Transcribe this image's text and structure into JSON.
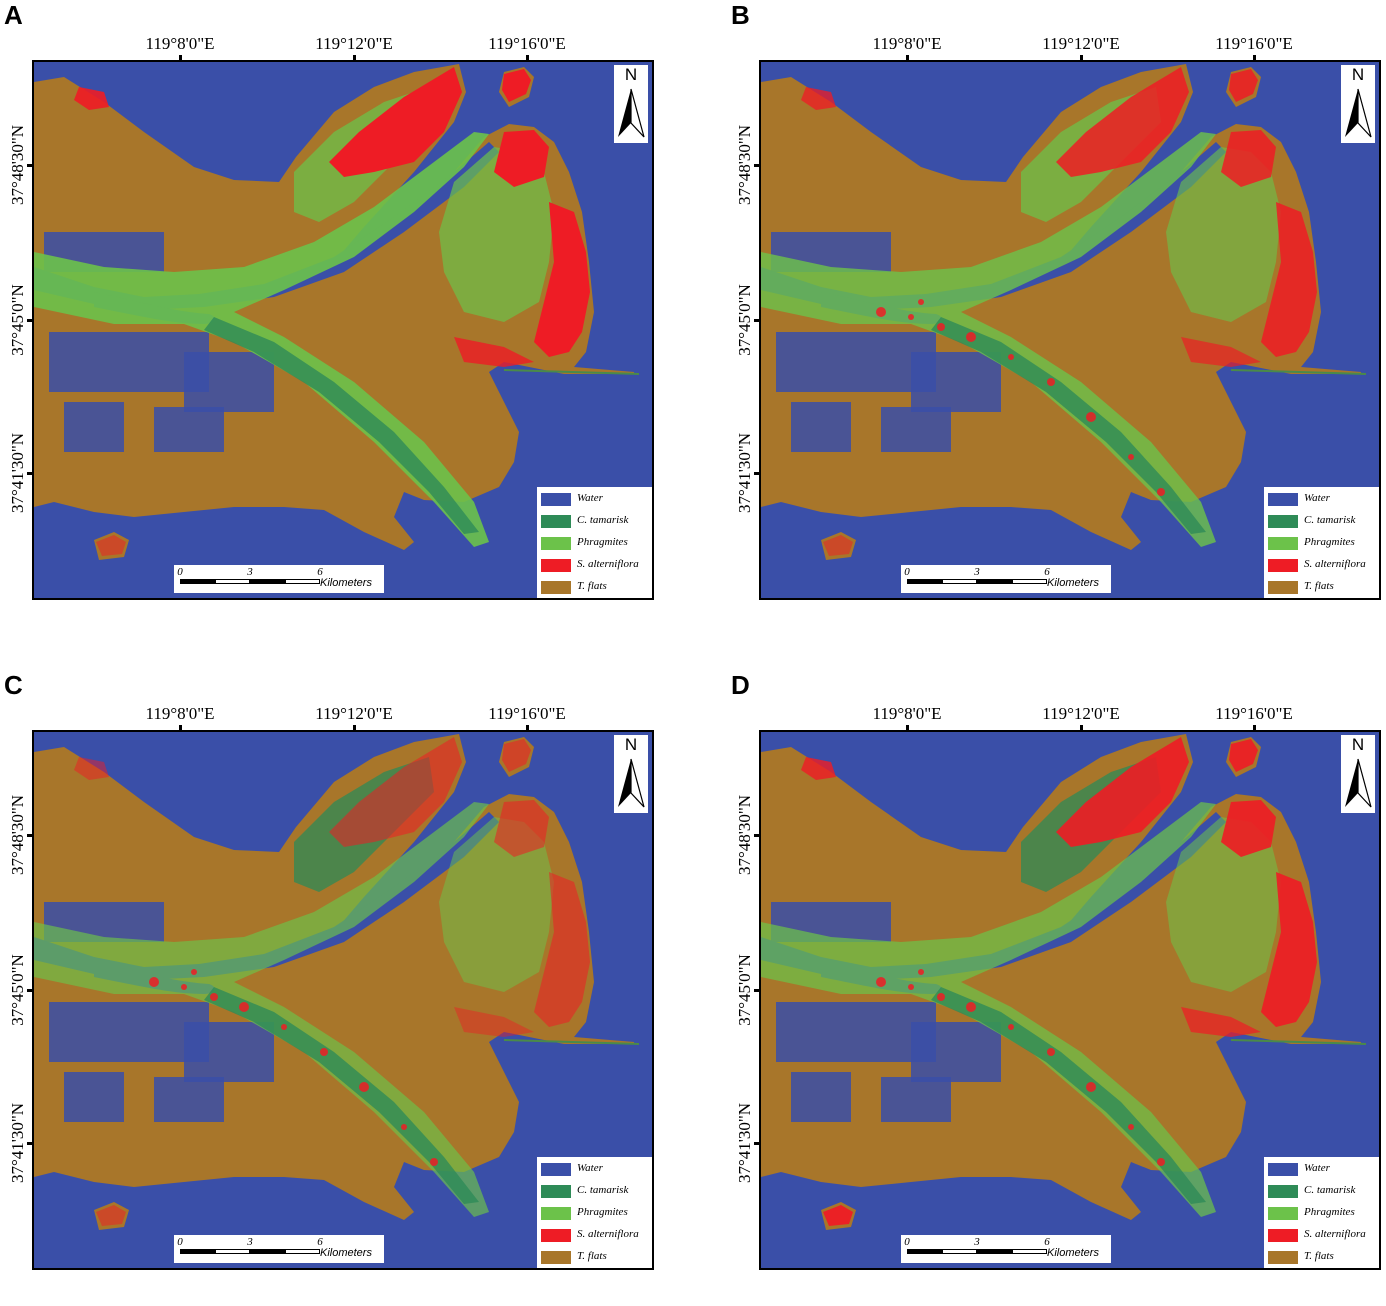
{
  "panels": [
    {
      "letter": "A"
    },
    {
      "letter": "B"
    },
    {
      "letter": "C"
    },
    {
      "letter": "D"
    }
  ],
  "axes": {
    "lon_labels": [
      "119°8'0\"E",
      "119°12'0\"E",
      "119°16'0\"E"
    ],
    "lat_labels": [
      "37°48'30\"N",
      "37°45'0\"N",
      "37°41'30\"N"
    ]
  },
  "legend": [
    {
      "label": "Water",
      "color": "#3a4fa8"
    },
    {
      "label": "C. tamarisk",
      "color": "#2e8b57"
    },
    {
      "label": "Phragmites",
      "color": "#6cc24a"
    },
    {
      "label": "S. alterniflora",
      "color": "#ee1c25"
    },
    {
      "label": "T. flats",
      "color": "#a8762a"
    }
  ],
  "scale": {
    "ticks": [
      "0",
      "3",
      "6"
    ],
    "unit": "Kilometers"
  },
  "north_label": "N"
}
